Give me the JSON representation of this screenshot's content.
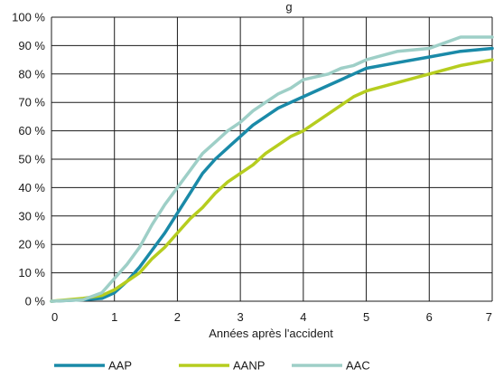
{
  "chart_data": {
    "type": "line",
    "title": "g",
    "xlabel": "Années après l'accident",
    "ylabel": "",
    "xlim": [
      0,
      7
    ],
    "ylim": [
      0,
      100
    ],
    "x_ticks": [
      "0",
      "1",
      "2",
      "3",
      "4",
      "5",
      "6",
      "7"
    ],
    "y_ticks": [
      "0 %",
      "10 %",
      "20 %",
      "30 %",
      "40 %",
      "50 %",
      "60 %",
      "70 %",
      "80 %",
      "90 %",
      "100 %"
    ],
    "grid": true,
    "legend_position": "bottom",
    "series": [
      {
        "name": "AAP",
        "color": "#1a8aa8",
        "x": [
          0,
          0.5,
          0.8,
          1.0,
          1.2,
          1.4,
          1.6,
          1.8,
          2.0,
          2.2,
          2.4,
          2.6,
          2.8,
          3.0,
          3.2,
          3.4,
          3.6,
          3.8,
          4.0,
          4.2,
          4.4,
          4.6,
          4.8,
          5.0,
          5.5,
          6.0,
          6.5,
          7.0
        ],
        "y": [
          0,
          0.5,
          1,
          3,
          7,
          12,
          18,
          24,
          31,
          38,
          45,
          50,
          54,
          58,
          62,
          65,
          68,
          70,
          72,
          74,
          76,
          78,
          80,
          82,
          84,
          86,
          88,
          89
        ]
      },
      {
        "name": "AANP",
        "color": "#b6cd1f",
        "x": [
          0,
          0.5,
          0.8,
          1.0,
          1.2,
          1.4,
          1.6,
          1.8,
          2.0,
          2.2,
          2.4,
          2.6,
          2.8,
          3.0,
          3.2,
          3.4,
          3.6,
          3.8,
          4.0,
          4.2,
          4.4,
          4.6,
          4.8,
          5.0,
          5.5,
          6.0,
          6.5,
          7.0
        ],
        "y": [
          0,
          1,
          2,
          4,
          7,
          10,
          15,
          19,
          24,
          29,
          33,
          38,
          42,
          45,
          48,
          52,
          55,
          58,
          60,
          63,
          66,
          69,
          72,
          74,
          77,
          80,
          83,
          85
        ]
      },
      {
        "name": "AAC",
        "color": "#9ecfc7",
        "x": [
          0,
          0.5,
          0.8,
          1.0,
          1.2,
          1.4,
          1.6,
          1.8,
          2.0,
          2.2,
          2.4,
          2.6,
          2.8,
          3.0,
          3.2,
          3.4,
          3.6,
          3.8,
          4.0,
          4.2,
          4.4,
          4.6,
          4.8,
          5.0,
          5.5,
          6.0,
          6.5,
          7.0
        ],
        "y": [
          0,
          0.5,
          3,
          8,
          13,
          19,
          27,
          34,
          40,
          46,
          52,
          56,
          60,
          63,
          67,
          70,
          73,
          75,
          78,
          79,
          80,
          82,
          83,
          85,
          88,
          89,
          93,
          93
        ]
      }
    ]
  }
}
